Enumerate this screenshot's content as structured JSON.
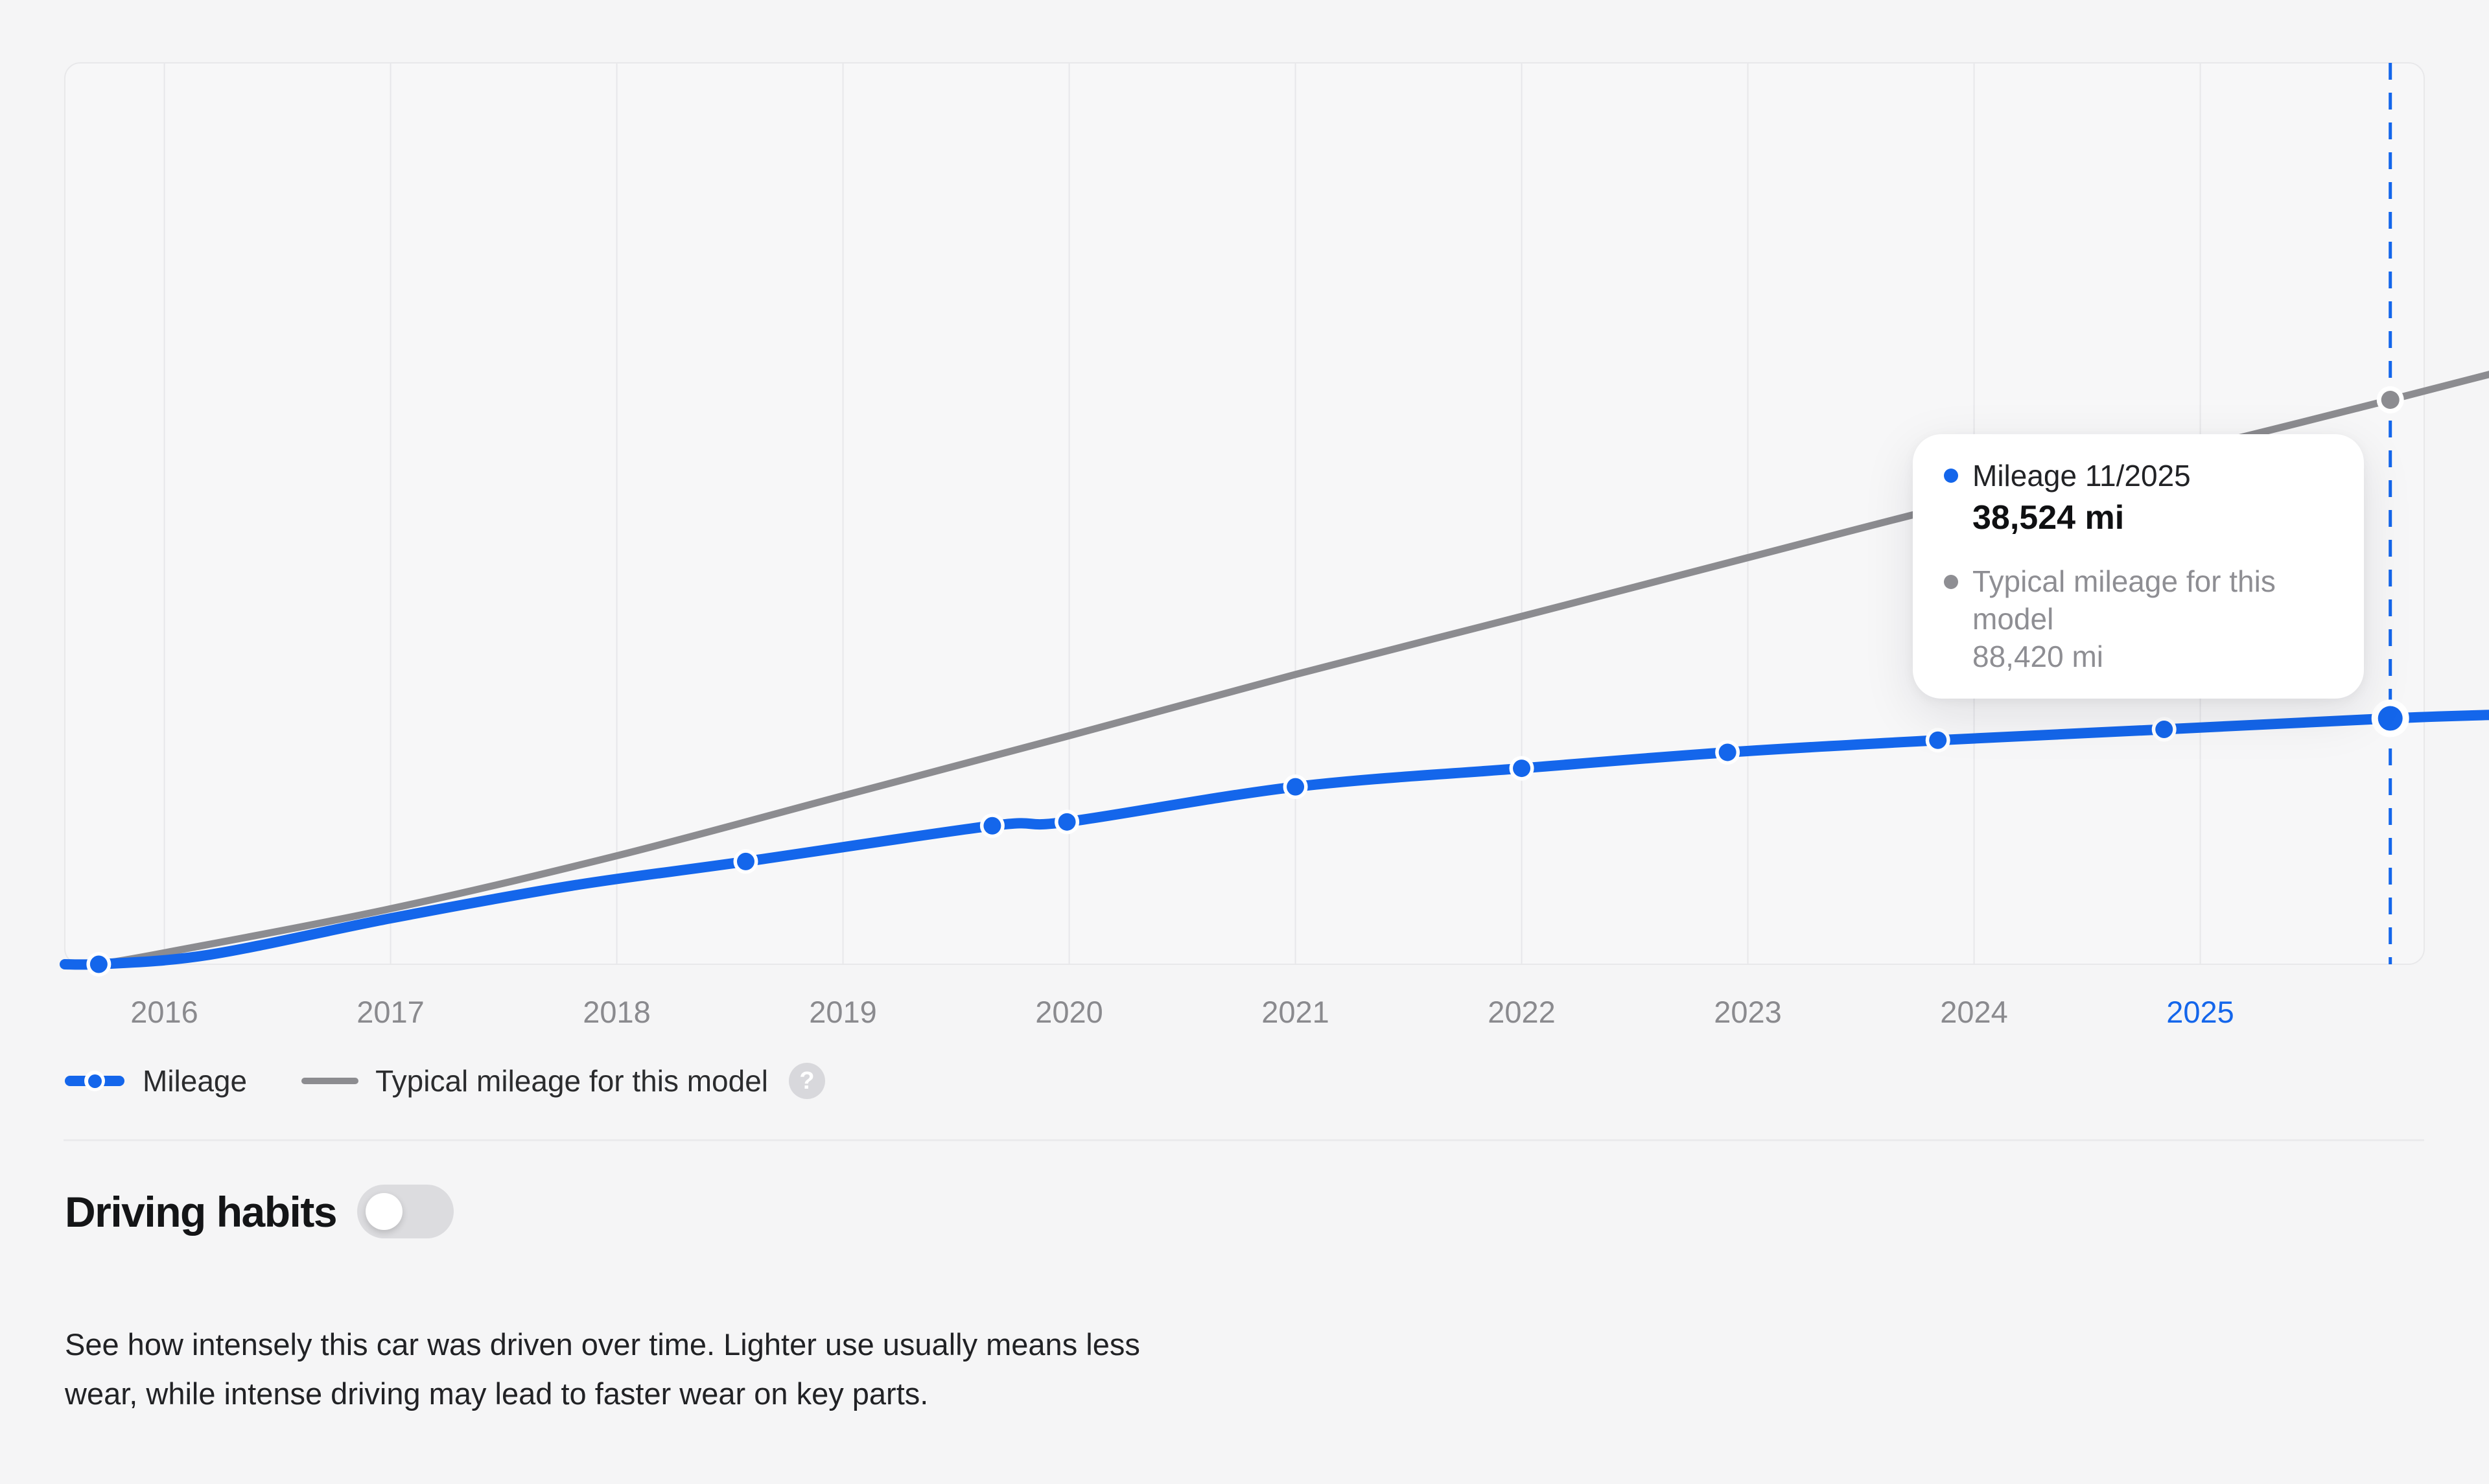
{
  "colors": {
    "page_bg": "#F5F5F6",
    "plot_fill": "#F7F7F8",
    "grid": "#E7E7EA",
    "frame_border": "#E8E8EA",
    "primary_blue": "#1466EB",
    "typical_gray": "#8C8C90",
    "axis_text": "#8A8A8E",
    "axis_text_highlight": "#1466EB",
    "tooltip_gray_text": "#8E8E93",
    "divider": "#EBEBED",
    "toggle_track_off": "#DCDCDF"
  },
  "chart_data": {
    "type": "line",
    "title": "",
    "xlabel": "",
    "ylabel": "",
    "grid": "vertical-only",
    "x_axis": {
      "labels": [
        "2016",
        "2017",
        "2018",
        "2019",
        "2020",
        "2021",
        "2022",
        "2023",
        "2024",
        "2025"
      ],
      "highlighted_label": "2025"
    },
    "xlim": [
      2015.56,
      2026.32
    ],
    "ylim_mi": [
      0,
      141000
    ],
    "hover": {
      "x_year": 2025.84,
      "date_label": "11/2025",
      "mileage_mi": 38524,
      "typical_mi": 88420
    },
    "series": [
      {
        "name": "Mileage",
        "color": "#1466EB",
        "curve_points": [
          [
            2015.56,
            0
          ],
          [
            2015.71,
            0
          ],
          [
            2016.2,
            1500
          ],
          [
            2017.0,
            7200
          ],
          [
            2017.8,
            12300
          ],
          [
            2018.57,
            16100
          ],
          [
            2019.66,
            21700
          ],
          [
            2019.99,
            22300
          ],
          [
            2021.0,
            27800
          ],
          [
            2022.0,
            30700
          ],
          [
            2022.91,
            33200
          ],
          [
            2023.84,
            35100
          ],
          [
            2024.84,
            36800
          ],
          [
            2025.84,
            38524
          ],
          [
            2026.32,
            39100
          ]
        ],
        "dot_points": [
          [
            2015.71,
            0
          ],
          [
            2018.57,
            16100
          ],
          [
            2019.66,
            21700
          ],
          [
            2019.99,
            22300
          ],
          [
            2021.0,
            27800
          ],
          [
            2022.0,
            30700
          ],
          [
            2022.91,
            33200
          ],
          [
            2023.84,
            35100
          ],
          [
            2024.84,
            36800
          ],
          [
            2025.84,
            38524
          ]
        ]
      },
      {
        "name": "Typical mileage for this model",
        "color": "#8C8C90",
        "curve_points": [
          [
            2015.71,
            0
          ],
          [
            2016.0,
            1800
          ],
          [
            2017.0,
            8700
          ],
          [
            2018.0,
            17000
          ],
          [
            2019.0,
            26400
          ],
          [
            2020.0,
            35800
          ],
          [
            2021.0,
            45400
          ],
          [
            2022.0,
            54500
          ],
          [
            2023.0,
            63700
          ],
          [
            2024.0,
            72800
          ],
          [
            2025.0,
            81000
          ],
          [
            2025.84,
            88420
          ],
          [
            2026.32,
            92800
          ]
        ],
        "dot_points": [
          [
            2025.84,
            88420
          ]
        ]
      }
    ]
  },
  "tooltip": {
    "series1_label": "Mileage 11/2025",
    "series1_value": "38,524 mi",
    "series2_label": "Typical mileage for this model",
    "series2_value": "88,420 mi"
  },
  "legend": {
    "mileage_label": "Mileage",
    "typical_label": "Typical mileage for this model",
    "help_glyph": "?"
  },
  "driving_habits": {
    "title": "Driving habits",
    "toggle_state": "off",
    "description": "See how intensely this car was driven over time. Lighter use usually means less wear, while intense driving may lead to faster wear on key parts."
  }
}
